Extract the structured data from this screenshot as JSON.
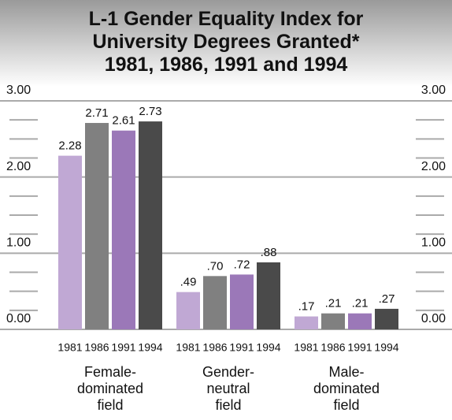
{
  "chart_data": {
    "type": "bar",
    "title": "L-1 Gender Equality Index for\nUniversity Degrees Granted*\n1981, 1986, 1991 and 1994",
    "categories": [
      "Female-\ndominated\nfield",
      "Gender-\nneutral\nfield",
      "Male-\ndominated\nfield"
    ],
    "series": [
      {
        "name": "1981",
        "color": "#c0a8d4",
        "values": [
          2.28,
          0.49,
          0.17
        ],
        "value_labels": [
          "2.28",
          ".49",
          ".17"
        ]
      },
      {
        "name": "1986",
        "color": "#808080",
        "values": [
          2.71,
          0.7,
          0.21
        ],
        "value_labels": [
          "2.71",
          ".70",
          ".21"
        ]
      },
      {
        "name": "1991",
        "color": "#9b78b8",
        "values": [
          2.61,
          0.72,
          0.21
        ],
        "value_labels": [
          "2.61",
          ".72",
          ".21"
        ]
      },
      {
        "name": "1994",
        "color": "#4a4a4a",
        "values": [
          2.73,
          0.88,
          0.27
        ],
        "value_labels": [
          "2.73",
          ".88",
          ".27"
        ]
      }
    ],
    "ylim": [
      0,
      3
    ],
    "yticks": [
      {
        "value": 0,
        "label": "0.00"
      },
      {
        "value": 1,
        "label": "1.00"
      },
      {
        "value": 2,
        "label": "2.00"
      },
      {
        "value": 3,
        "label": "3.00"
      }
    ],
    "yticks_minor": [
      0.25,
      0.5,
      0.75,
      1.25,
      1.5,
      1.75,
      2.25,
      2.5,
      2.75
    ]
  }
}
